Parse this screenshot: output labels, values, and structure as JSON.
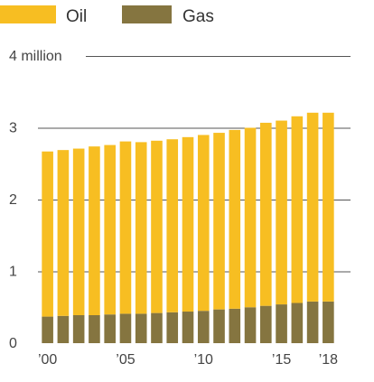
{
  "chart_data": {
    "type": "bar",
    "stacked": true,
    "x": [
      2000,
      2001,
      2002,
      2003,
      2004,
      2005,
      2006,
      2007,
      2008,
      2009,
      2010,
      2011,
      2012,
      2013,
      2014,
      2015,
      2016,
      2017,
      2018
    ],
    "series": [
      {
        "name": "Gas",
        "color": "#857540",
        "values": [
          0.37,
          0.38,
          0.39,
          0.39,
          0.4,
          0.41,
          0.41,
          0.42,
          0.43,
          0.44,
          0.45,
          0.47,
          0.48,
          0.5,
          0.52,
          0.54,
          0.56,
          0.58,
          0.58
        ]
      },
      {
        "name": "Oil",
        "color": "#F7BE22",
        "values": [
          2.3,
          2.31,
          2.32,
          2.35,
          2.36,
          2.4,
          2.39,
          2.4,
          2.41,
          2.43,
          2.45,
          2.46,
          2.49,
          2.5,
          2.55,
          2.56,
          2.6,
          2.63,
          2.63
        ]
      }
    ],
    "x_tick_labels": [
      {
        "x": 2000,
        "label": "’00"
      },
      {
        "x": 2005,
        "label": "’05"
      },
      {
        "x": 2010,
        "label": "’10"
      },
      {
        "x": 2015,
        "label": "’15"
      },
      {
        "x": 2018,
        "label": "’18"
      }
    ],
    "y_ticks": [
      {
        "value": 0,
        "label": "0"
      },
      {
        "value": 1,
        "label": "1"
      },
      {
        "value": 2,
        "label": "2"
      },
      {
        "value": 3,
        "label": "3"
      },
      {
        "value": 4,
        "label": "4 million"
      }
    ],
    "ylim": [
      0,
      4
    ],
    "grid": true,
    "legend": {
      "placement": "top-left",
      "items": [
        {
          "label": "Oil",
          "color": "#F7BE22"
        },
        {
          "label": "Gas",
          "color": "#857540"
        }
      ]
    }
  }
}
